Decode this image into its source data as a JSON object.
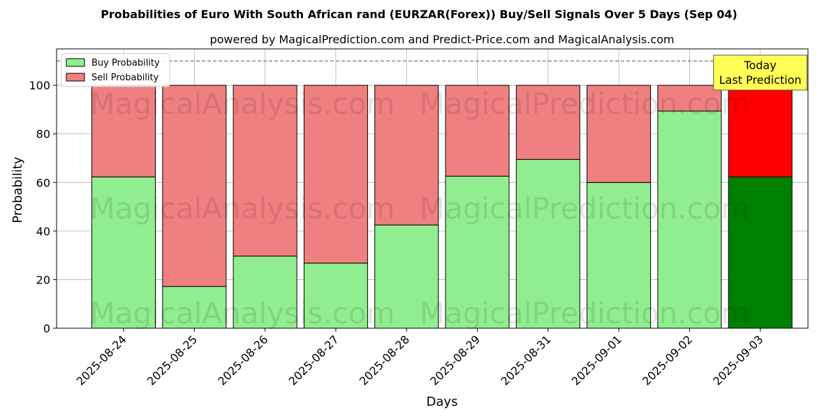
{
  "chart_data": {
    "type": "bar",
    "stacked": true,
    "title": "Probabilities of Euro With South African rand (EURZAR(Forex)) Buy/Sell Signals Over 5 Days (Sep 04)",
    "subtitle": "powered by MagicalPrediction.com and Predict-Price.com and MagicalAnalysis.com",
    "xlabel": "Days",
    "ylabel": "Probability",
    "ylim": [
      0,
      115
    ],
    "yticks": [
      0,
      20,
      40,
      60,
      80,
      100
    ],
    "grid": true,
    "reference_line": 110,
    "legend_position": "top-left",
    "categories": [
      "2025-08-24",
      "2025-08-25",
      "2025-08-26",
      "2025-08-27",
      "2025-08-28",
      "2025-08-29",
      "2025-08-31",
      "2025-09-01",
      "2025-09-02",
      "2025-09-03"
    ],
    "series": [
      {
        "name": "Buy Probability",
        "color": "#90ee90",
        "highlight_color": "#008000",
        "values": [
          62.3,
          17.2,
          29.7,
          26.8,
          42.5,
          62.6,
          69.5,
          60.0,
          89.4,
          62.3
        ]
      },
      {
        "name": "Sell Probability",
        "color": "#f08080",
        "highlight_color": "#ff0000",
        "values": [
          37.7,
          82.8,
          70.3,
          73.2,
          57.5,
          37.4,
          30.5,
          40.0,
          10.6,
          37.7
        ]
      }
    ],
    "highlight_index": 9,
    "annotation": {
      "lines": [
        "Today",
        "Last Prediction"
      ],
      "color": "#ffff55"
    },
    "watermarks": [
      "MagicalAnalysis.com",
      "MagicalPrediction.com"
    ]
  }
}
